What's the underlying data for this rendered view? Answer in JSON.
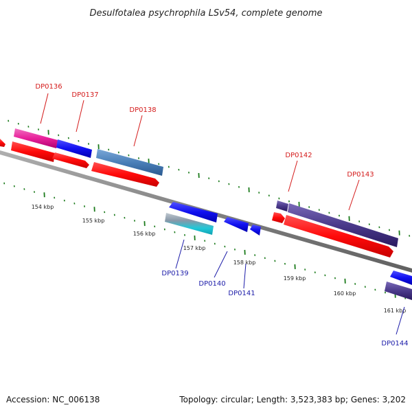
{
  "title": "Desulfotalea psychrophila LSv54, complete genome",
  "footer": {
    "accession": "Accession: NC_006138",
    "topology": "Topology: circular; Length: 3,523,383 bp; Genes: 3,202"
  },
  "kbp_labels": [
    "154 kbp",
    "155 kbp",
    "156 kbp",
    "157 kbp",
    "158 kbp",
    "159 kbp",
    "160 kbp",
    "161 kbp"
  ],
  "genes_top": [
    "DP0136",
    "DP0137",
    "DP0138",
    "DP0142",
    "DP0143"
  ],
  "genes_bottom": [
    "DP0139",
    "DP0140",
    "DP0141",
    "DP0144"
  ],
  "colors": {
    "label_top": "#d41a1a",
    "label_bottom": "#1a1aa8",
    "backbone": "#888888",
    "tick": "#1a7a1a",
    "red": "#ff1010",
    "blue": "#1010ee",
    "pink": "#e8209a",
    "steelblue": "#4a7fb8",
    "purple": "#4a3a8a",
    "cyan": "#20c8d8"
  }
}
